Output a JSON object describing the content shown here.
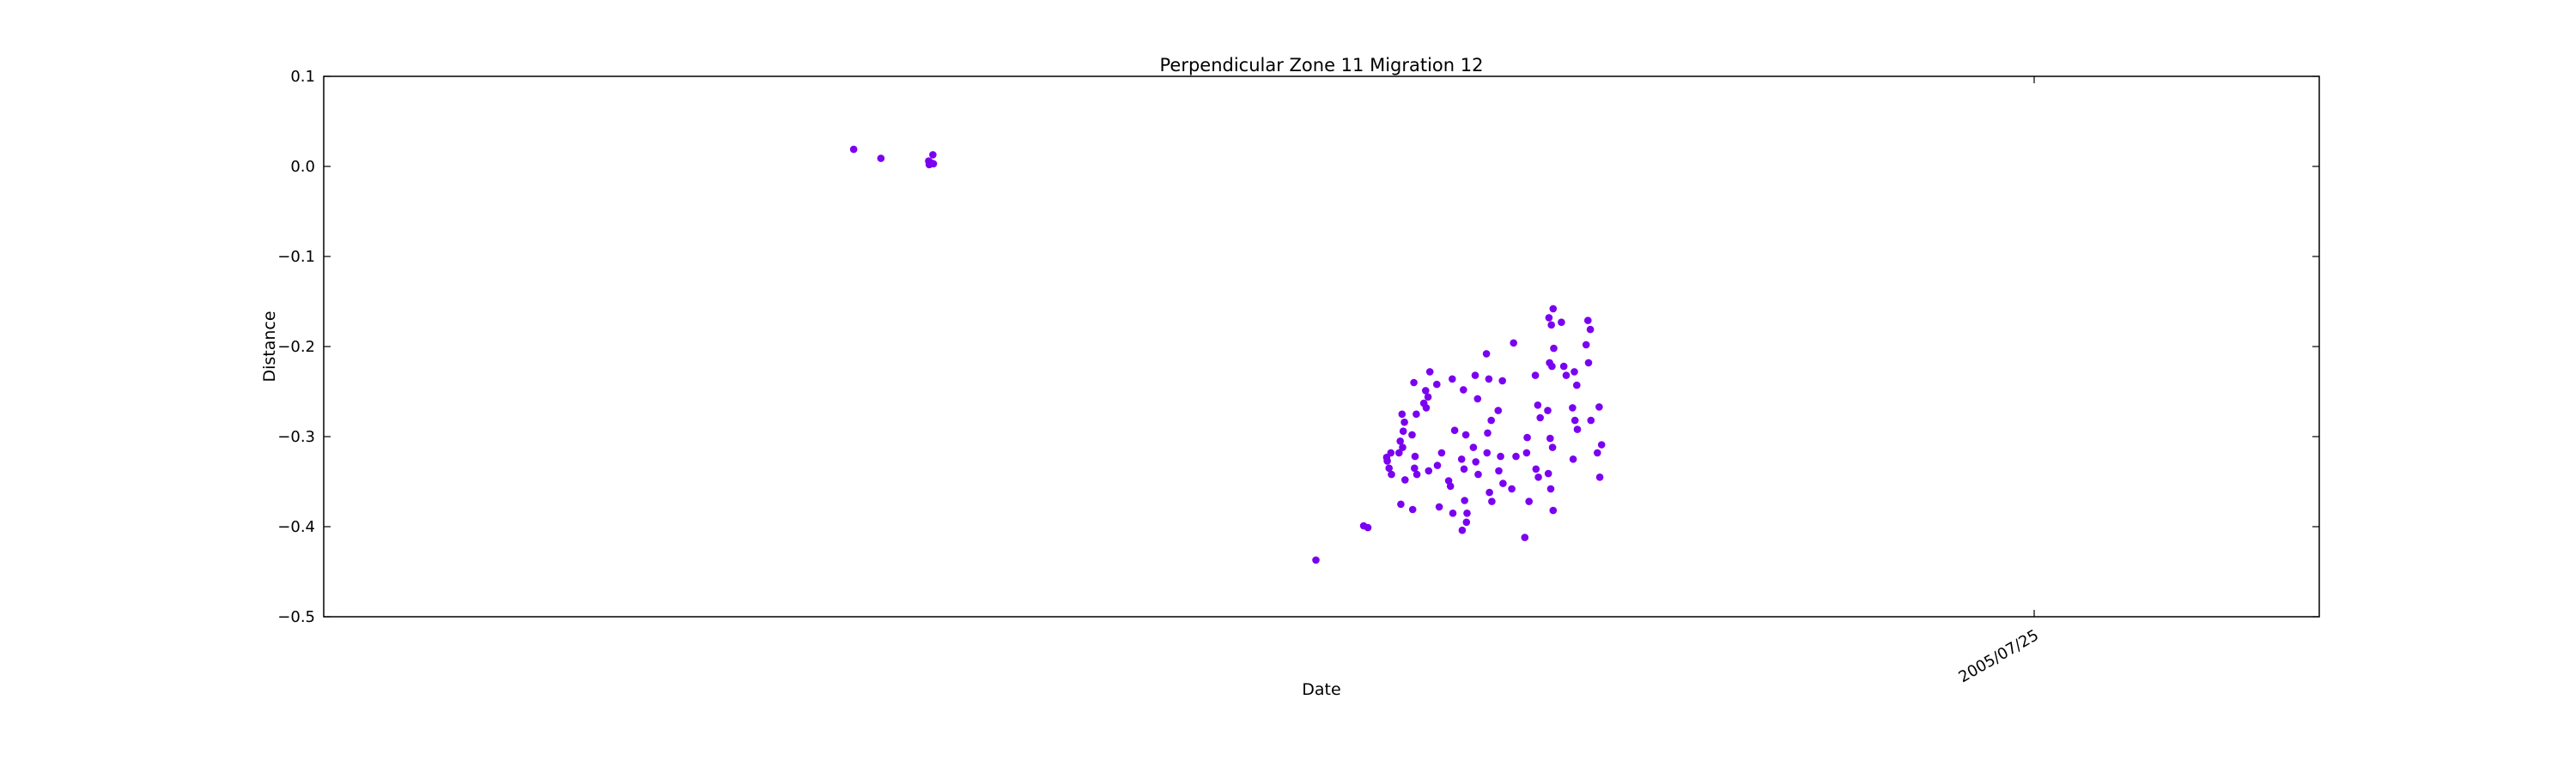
{
  "chart_data": {
    "type": "scatter",
    "title": "Perpendicular Zone 11 Migration 12",
    "xlabel": "Date",
    "ylabel": "Distance",
    "xlim": [
      "2005-03-09",
      "2005-08-17"
    ],
    "ylim": [
      -0.5,
      0.1
    ],
    "y_ticks": [
      0.1,
      0.0,
      -0.1,
      -0.2,
      -0.3,
      -0.4,
      -0.5
    ],
    "y_tick_labels": [
      "0.1",
      "0.0",
      "−0.1",
      "−0.2",
      "−0.3",
      "−0.4",
      "−0.5"
    ],
    "x_ticks": [
      "2005-07-25"
    ],
    "x_tick_labels": [
      "2005/07/25"
    ],
    "grid": false,
    "legend": "none",
    "marker_color": "#7b00f0",
    "series": [
      {
        "points": [
          {
            "x": "2005-04-21",
            "y": 0.019
          },
          {
            "x": "2005-04-23",
            "y": 0.009
          },
          {
            "x": "2005-04-27",
            "y": 0.013
          },
          {
            "x": "2005-04-27",
            "y": 0.006
          },
          {
            "x": "2005-04-27",
            "y": 0.004
          },
          {
            "x": "2005-04-27",
            "y": 0.003
          },
          {
            "x": "2005-04-27",
            "y": 0.002
          },
          {
            "x": "2005-05-28",
            "y": -0.437
          },
          {
            "x": "2005-06-01",
            "y": -0.401
          },
          {
            "x": "2005-06-01",
            "y": -0.399
          },
          {
            "x": "2005-06-03",
            "y": -0.318
          },
          {
            "x": "2005-06-03",
            "y": -0.323
          },
          {
            "x": "2005-06-03",
            "y": -0.335
          },
          {
            "x": "2005-06-03",
            "y": -0.342
          },
          {
            "x": "2005-06-03",
            "y": -0.327
          },
          {
            "x": "2005-06-04",
            "y": -0.275
          },
          {
            "x": "2005-06-04",
            "y": -0.284
          },
          {
            "x": "2005-06-04",
            "y": -0.305
          },
          {
            "x": "2005-06-04",
            "y": -0.312
          },
          {
            "x": "2005-06-04",
            "y": -0.348
          },
          {
            "x": "2005-06-04",
            "y": -0.375
          },
          {
            "x": "2005-06-04",
            "y": -0.294
          },
          {
            "x": "2005-06-04",
            "y": -0.318
          },
          {
            "x": "2005-06-05",
            "y": -0.24
          },
          {
            "x": "2005-06-05",
            "y": -0.275
          },
          {
            "x": "2005-06-05",
            "y": -0.298
          },
          {
            "x": "2005-06-05",
            "y": -0.335
          },
          {
            "x": "2005-06-05",
            "y": -0.342
          },
          {
            "x": "2005-06-05",
            "y": -0.381
          },
          {
            "x": "2005-06-05",
            "y": -0.322
          },
          {
            "x": "2005-06-06",
            "y": -0.228
          },
          {
            "x": "2005-06-06",
            "y": -0.249
          },
          {
            "x": "2005-06-06",
            "y": -0.256
          },
          {
            "x": "2005-06-06",
            "y": -0.263
          },
          {
            "x": "2005-06-06",
            "y": -0.268
          },
          {
            "x": "2005-06-06",
            "y": -0.338
          },
          {
            "x": "2005-06-07",
            "y": -0.242
          },
          {
            "x": "2005-06-07",
            "y": -0.378
          },
          {
            "x": "2005-06-07",
            "y": -0.318
          },
          {
            "x": "2005-06-07",
            "y": -0.332
          },
          {
            "x": "2005-06-08",
            "y": -0.236
          },
          {
            "x": "2005-06-08",
            "y": -0.293
          },
          {
            "x": "2005-06-08",
            "y": -0.355
          },
          {
            "x": "2005-06-08",
            "y": -0.385
          },
          {
            "x": "2005-06-08",
            "y": -0.349
          },
          {
            "x": "2005-06-09",
            "y": -0.248
          },
          {
            "x": "2005-06-09",
            "y": -0.298
          },
          {
            "x": "2005-06-09",
            "y": -0.325
          },
          {
            "x": "2005-06-09",
            "y": -0.336
          },
          {
            "x": "2005-06-09",
            "y": -0.395
          },
          {
            "x": "2005-06-09",
            "y": -0.404
          },
          {
            "x": "2005-06-09",
            "y": -0.371
          },
          {
            "x": "2005-06-09",
            "y": -0.385
          },
          {
            "x": "2005-06-10",
            "y": -0.232
          },
          {
            "x": "2005-06-10",
            "y": -0.258
          },
          {
            "x": "2005-06-10",
            "y": -0.312
          },
          {
            "x": "2005-06-10",
            "y": -0.328
          },
          {
            "x": "2005-06-10",
            "y": -0.342
          },
          {
            "x": "2005-06-11",
            "y": -0.208
          },
          {
            "x": "2005-06-11",
            "y": -0.236
          },
          {
            "x": "2005-06-11",
            "y": -0.282
          },
          {
            "x": "2005-06-11",
            "y": -0.318
          },
          {
            "x": "2005-06-11",
            "y": -0.362
          },
          {
            "x": "2005-06-11",
            "y": -0.372
          },
          {
            "x": "2005-06-11",
            "y": -0.296
          },
          {
            "x": "2005-06-12",
            "y": -0.238
          },
          {
            "x": "2005-06-12",
            "y": -0.271
          },
          {
            "x": "2005-06-12",
            "y": -0.322
          },
          {
            "x": "2005-06-12",
            "y": -0.352
          },
          {
            "x": "2005-06-12",
            "y": -0.338
          },
          {
            "x": "2005-06-13",
            "y": -0.196
          },
          {
            "x": "2005-06-13",
            "y": -0.322
          },
          {
            "x": "2005-06-13",
            "y": -0.358
          },
          {
            "x": "2005-06-14",
            "y": -0.318
          },
          {
            "x": "2005-06-14",
            "y": -0.372
          },
          {
            "x": "2005-06-14",
            "y": -0.412
          },
          {
            "x": "2005-06-14",
            "y": -0.301
          },
          {
            "x": "2005-06-15",
            "y": -0.232
          },
          {
            "x": "2005-06-15",
            "y": -0.265
          },
          {
            "x": "2005-06-15",
            "y": -0.279
          },
          {
            "x": "2005-06-15",
            "y": -0.336
          },
          {
            "x": "2005-06-15",
            "y": -0.345
          },
          {
            "x": "2005-06-16",
            "y": -0.158
          },
          {
            "x": "2005-06-16",
            "y": -0.168
          },
          {
            "x": "2005-06-16",
            "y": -0.176
          },
          {
            "x": "2005-06-16",
            "y": -0.202
          },
          {
            "x": "2005-06-16",
            "y": -0.218
          },
          {
            "x": "2005-06-16",
            "y": -0.222
          },
          {
            "x": "2005-06-16",
            "y": -0.271
          },
          {
            "x": "2005-06-16",
            "y": -0.302
          },
          {
            "x": "2005-06-16",
            "y": -0.312
          },
          {
            "x": "2005-06-16",
            "y": -0.341
          },
          {
            "x": "2005-06-16",
            "y": -0.358
          },
          {
            "x": "2005-06-16",
            "y": -0.382
          },
          {
            "x": "2005-06-17",
            "y": -0.173
          },
          {
            "x": "2005-06-17",
            "y": -0.222
          },
          {
            "x": "2005-06-17",
            "y": -0.232
          },
          {
            "x": "2005-06-18",
            "y": -0.228
          },
          {
            "x": "2005-06-18",
            "y": -0.243
          },
          {
            "x": "2005-06-18",
            "y": -0.268
          },
          {
            "x": "2005-06-18",
            "y": -0.282
          },
          {
            "x": "2005-06-18",
            "y": -0.292
          },
          {
            "x": "2005-06-18",
            "y": -0.325
          },
          {
            "x": "2005-06-19",
            "y": -0.171
          },
          {
            "x": "2005-06-19",
            "y": -0.181
          },
          {
            "x": "2005-06-19",
            "y": -0.198
          },
          {
            "x": "2005-06-19",
            "y": -0.218
          },
          {
            "x": "2005-06-19",
            "y": -0.282
          },
          {
            "x": "2005-06-20",
            "y": -0.267
          },
          {
            "x": "2005-06-20",
            "y": -0.309
          },
          {
            "x": "2005-06-20",
            "y": -0.318
          },
          {
            "x": "2005-06-20",
            "y": -0.345
          }
        ]
      }
    ]
  }
}
